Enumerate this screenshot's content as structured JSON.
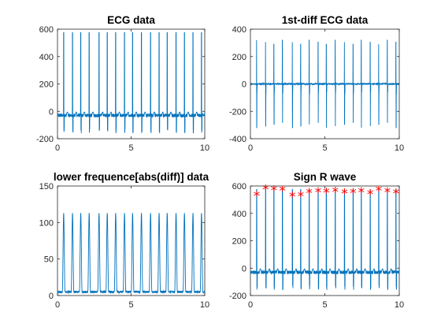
{
  "colors": {
    "line": "#0072BD",
    "marker": "#FF0000",
    "axis": "#262626"
  },
  "chart_data": [
    {
      "type": "line",
      "title": "ECG data",
      "xlim": [
        0,
        10
      ],
      "ylim": [
        -200,
        600
      ],
      "xticks": [
        0,
        5,
        10
      ],
      "yticks": [
        -200,
        0,
        200,
        400,
        600
      ],
      "grid": false,
      "series": [
        {
          "signal": "ecg",
          "baseline": -30,
          "r_peak": 575,
          "noise": 25
        }
      ]
    },
    {
      "type": "line",
      "title": "1st-diff ECG data",
      "xlim": [
        0,
        10
      ],
      "ylim": [
        -400,
        400
      ],
      "xticks": [
        0,
        5,
        10
      ],
      "yticks": [
        -400,
        -200,
        0,
        200,
        400
      ],
      "grid": false,
      "series": [
        {
          "signal": "diff",
          "baseline": 0,
          "r_peak": 320,
          "r_trough": -320,
          "noise": 10
        }
      ]
    },
    {
      "type": "line",
      "title": "lower frequence[abs(diff)] data",
      "xlim": [
        0,
        10
      ],
      "ylim": [
        0,
        150
      ],
      "xticks": [
        0,
        5,
        10
      ],
      "yticks": [
        0,
        50,
        100,
        150
      ],
      "grid": false,
      "series": [
        {
          "signal": "envelope",
          "baseline": 5,
          "r_peak": 113,
          "noise": 3
        }
      ]
    },
    {
      "type": "line",
      "title": "Sign R wave",
      "xlim": [
        0,
        10
      ],
      "ylim": [
        -200,
        600
      ],
      "xticks": [
        0,
        5,
        10
      ],
      "yticks": [
        -200,
        0,
        200,
        400,
        600
      ],
      "grid": false,
      "series": [
        {
          "signal": "ecg",
          "baseline": -30,
          "r_peak": 575,
          "noise": 25
        }
      ],
      "markers": {
        "symbol": "*",
        "x": [
          0.42,
          1.02,
          1.58,
          2.15,
          2.82,
          3.38,
          3.95,
          4.55,
          5.1,
          5.7,
          6.32,
          6.9,
          7.45,
          8.05,
          8.62,
          9.2,
          9.78
        ],
        "y": [
          535,
          580,
          575,
          570,
          528,
          530,
          555,
          560,
          558,
          562,
          552,
          555,
          560,
          545,
          572,
          560,
          550
        ]
      }
    }
  ],
  "r_peak_times": [
    0.42,
    1.02,
    1.58,
    2.15,
    2.82,
    3.38,
    3.95,
    4.55,
    5.1,
    5.7,
    6.32,
    6.9,
    7.45,
    8.05,
    8.62,
    9.2,
    9.78
  ],
  "r_peak_values": [
    535,
    580,
    575,
    570,
    528,
    530,
    555,
    560,
    558,
    562,
    552,
    555,
    560,
    545,
    572,
    560,
    550
  ]
}
